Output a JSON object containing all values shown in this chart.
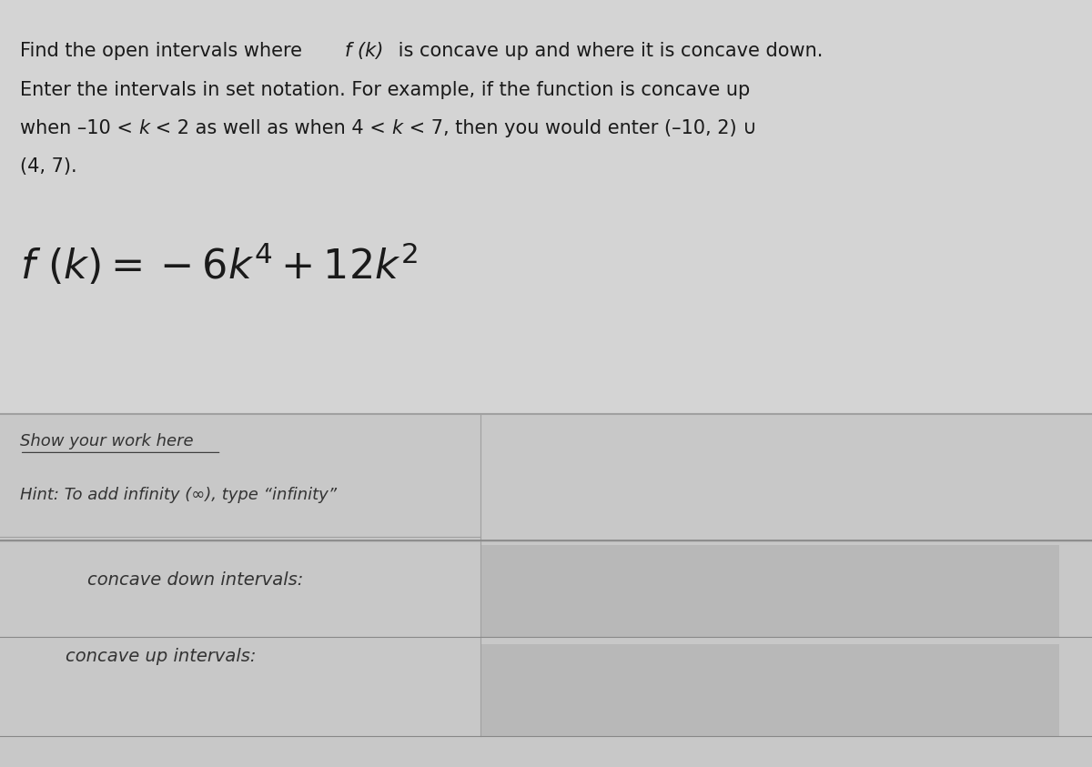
{
  "background_color": "#c8c8c8",
  "top_section_bg": "#d4d4d4",
  "bottom_section_bg": "#c8c8c8",
  "answer_box_bg": "#b8b8b8",
  "line1": "Find the open intervals where ",
  "line1_italic": "f (k)",
  "line1_rest": " is concave up and where it is concave down.",
  "line2": "Enter the intervals in set notation. For example, if the function is concave up",
  "line3_start": "when –10 < ",
  "line3_k1": "k",
  "line3_mid": " < 2 as well as when 4 < ",
  "line3_k2": "k",
  "line3_end": " < 7, then you would enter (–10, 2) ∪",
  "line4": "(4, 7).",
  "formula_label": "f (k) = −6k⁴ + 12k²",
  "show_work": "Show your work here",
  "hint": "Hint: To add infinity (∞), type “infinity”",
  "concave_down_label": "concave down intervals:",
  "concave_up_label": "concave up intervals:",
  "divider_color": "#a0a0a0",
  "text_color": "#1a1a1a",
  "label_color": "#333333",
  "font_size_body": 15,
  "font_size_formula": 32,
  "font_size_show_work": 13,
  "font_size_hint": 13,
  "font_size_labels": 14
}
